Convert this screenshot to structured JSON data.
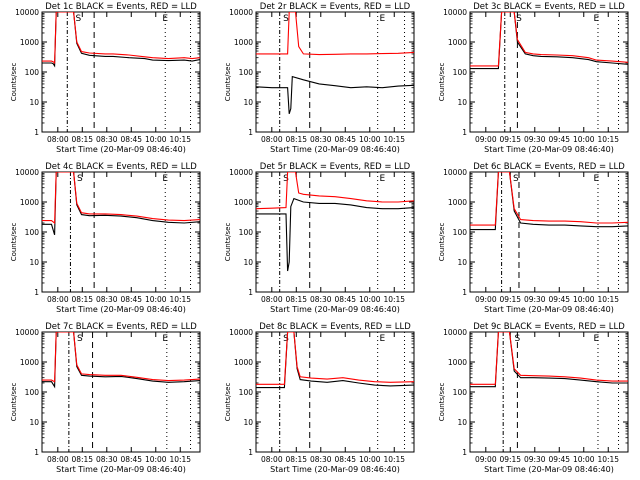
{
  "figure": {
    "type": "line",
    "xlabel": "Start Time (20-Mar-09 08:46:40)",
    "ylabel": "Counts/sec",
    "x_ticks": [
      "08:00",
      "08:15",
      "08:30",
      "08:45",
      "09:00",
      "09:15"
    ],
    "y_ticks": [
      "1",
      "10",
      "100",
      "1000",
      "10000"
    ],
    "y_log": true,
    "ylim": [
      1,
      10000
    ],
    "colors": {
      "events": "#000000",
      "lld": "#ff0000",
      "axes": "#000000"
    },
    "legend_words": [
      "BLACK = Events,",
      "RED = LLD"
    ]
  },
  "chart_data": [
    {
      "type": "line",
      "title": "Det 1c BLACK = Events, RED = LLD",
      "xlabel": "Start Time (20-Mar-09 08:46:40)",
      "ylabel": "Counts/sec",
      "x_ticks": [
        "08:00",
        "08:15",
        "08:30",
        "08:45",
        "10:00",
        "10:15"
      ],
      "markers": [
        "S",
        "E"
      ],
      "series": [
        {
          "name": "Events",
          "color": "#000000",
          "x": [
            0,
            6,
            7,
            8,
            9,
            12,
            16,
            20,
            22,
            25,
            30,
            40,
            45,
            55,
            65,
            70,
            80,
            90,
            95,
            100
          ],
          "values": [
            200,
            200,
            190,
            160,
            10000,
            10000,
            10000,
            10000,
            900,
            420,
            360,
            330,
            330,
            300,
            280,
            250,
            240,
            250,
            230,
            260
          ]
        },
        {
          "name": "LLD",
          "color": "#ff0000",
          "x": [
            0,
            6,
            7,
            8,
            9,
            12,
            16,
            20,
            22,
            25,
            30,
            40,
            45,
            55,
            65,
            70,
            80,
            90,
            95,
            100
          ],
          "values": [
            230,
            230,
            220,
            200,
            10000,
            10000,
            10000,
            10000,
            1000,
            480,
            430,
            400,
            400,
            370,
            320,
            300,
            280,
            300,
            280,
            300
          ]
        }
      ]
    },
    {
      "type": "line",
      "title": "Det 2r BLACK = Events, RED = LLD",
      "xlabel": "Start Time (20-Mar-09 08:46:40)",
      "ylabel": "Counts/sec",
      "x_ticks": [
        "08:00",
        "08:15",
        "08:30",
        "08:45",
        "10:00",
        "10:15"
      ],
      "markers": [
        "S",
        "E"
      ],
      "series": [
        {
          "name": "Events",
          "color": "#000000",
          "x": [
            0,
            10,
            20,
            21,
            22,
            23,
            30,
            40,
            50,
            60,
            70,
            80,
            90,
            100
          ],
          "values": [
            32,
            30,
            30,
            4,
            6,
            70,
            55,
            40,
            35,
            30,
            32,
            30,
            34,
            36
          ]
        },
        {
          "name": "LLD",
          "color": "#ff0000",
          "x": [
            0,
            10,
            20,
            21,
            22,
            23,
            25,
            27,
            30,
            40,
            50,
            60,
            70,
            80,
            90,
            100
          ],
          "values": [
            400,
            400,
            400,
            10000,
            10000,
            10000,
            10000,
            700,
            400,
            380,
            390,
            400,
            400,
            410,
            420,
            450
          ]
        }
      ]
    },
    {
      "type": "line",
      "title": "Det 3c BLACK = Events, RED = LLD",
      "xlabel": "Start Time (20-Mar-09 08:46:40)",
      "ylabel": "Counts/sec",
      "x_ticks": [
        "09:00",
        "09:15",
        "09:30",
        "09:45",
        "10:00",
        "10:15"
      ],
      "markers": [
        "S",
        "E"
      ],
      "series": [
        {
          "name": "Events",
          "color": "#000000",
          "x": [
            0,
            10,
            18,
            20,
            24,
            28,
            30,
            35,
            40,
            45,
            55,
            65,
            75,
            80,
            90,
            100
          ],
          "values": [
            130,
            130,
            130,
            10000,
            10000,
            10000,
            1000,
            400,
            350,
            330,
            320,
            300,
            260,
            220,
            200,
            180
          ]
        },
        {
          "name": "LLD",
          "color": "#ff0000",
          "x": [
            0,
            10,
            18,
            20,
            24,
            28,
            30,
            35,
            40,
            45,
            55,
            65,
            75,
            80,
            90,
            100
          ],
          "values": [
            160,
            160,
            160,
            10000,
            10000,
            10000,
            1200,
            450,
            400,
            380,
            370,
            350,
            300,
            250,
            230,
            210
          ]
        }
      ]
    },
    {
      "type": "line",
      "title": "Det 4c BLACK = Events, RED = LLD",
      "xlabel": "Start Time (20-Mar-09 08:46:40)",
      "ylabel": "Counts/sec",
      "x_ticks": [
        "08:00",
        "08:15",
        "08:30",
        "08:45",
        "10:00",
        "10:15"
      ],
      "markers": [
        "S",
        "E"
      ],
      "series": [
        {
          "name": "Events",
          "color": "#000000",
          "x": [
            0,
            6,
            8,
            9,
            12,
            16,
            20,
            22,
            25,
            30,
            40,
            50,
            60,
            70,
            80,
            90,
            100
          ],
          "values": [
            180,
            180,
            80,
            10000,
            10000,
            10000,
            10000,
            800,
            380,
            350,
            360,
            340,
            300,
            240,
            210,
            200,
            220
          ]
        },
        {
          "name": "LLD",
          "color": "#ff0000",
          "x": [
            0,
            6,
            8,
            9,
            12,
            16,
            20,
            22,
            25,
            30,
            40,
            50,
            60,
            70,
            80,
            90,
            100
          ],
          "values": [
            240,
            240,
            200,
            10000,
            10000,
            10000,
            10000,
            900,
            440,
            400,
            400,
            380,
            340,
            280,
            250,
            240,
            260
          ]
        }
      ]
    },
    {
      "type": "line",
      "title": "Det 5r BLACK = Events, RED = LLD",
      "xlabel": "Start Time (20-Mar-09 08:46:40)",
      "ylabel": "Counts/sec",
      "x_ticks": [
        "08:00",
        "08:15",
        "08:30",
        "08:45",
        "10:00",
        "10:15"
      ],
      "markers": [
        "S",
        "E"
      ],
      "series": [
        {
          "name": "Events",
          "color": "#000000",
          "x": [
            0,
            10,
            19,
            20,
            21,
            22,
            24,
            30,
            40,
            50,
            60,
            70,
            80,
            90,
            100
          ],
          "values": [
            400,
            400,
            400,
            5,
            10,
            700,
            1300,
            1000,
            900,
            900,
            800,
            650,
            600,
            600,
            650
          ]
        },
        {
          "name": "LLD",
          "color": "#ff0000",
          "x": [
            0,
            10,
            19,
            20,
            21,
            23,
            25,
            27,
            30,
            40,
            50,
            60,
            70,
            80,
            90,
            100
          ],
          "values": [
            600,
            620,
            650,
            10000,
            10000,
            10000,
            10000,
            2000,
            1800,
            1600,
            1500,
            1300,
            1100,
            1000,
            1000,
            1100
          ]
        }
      ]
    },
    {
      "type": "line",
      "title": "Det 6c BLACK = Events, RED = LLD",
      "xlabel": "Start Time (20-Mar-09 08:46:40)",
      "ylabel": "Counts/sec",
      "x_ticks": [
        "09:00",
        "09:15",
        "09:30",
        "09:45",
        "10:00",
        "10:15"
      ],
      "markers": [
        "S",
        "E"
      ],
      "series": [
        {
          "name": "Events",
          "color": "#000000",
          "x": [
            0,
            10,
            16,
            18,
            22,
            25,
            28,
            32,
            40,
            50,
            60,
            70,
            80,
            90,
            100
          ],
          "values": [
            120,
            120,
            120,
            10000,
            10000,
            10000,
            500,
            200,
            180,
            170,
            170,
            160,
            150,
            150,
            160
          ]
        },
        {
          "name": "LLD",
          "color": "#ff0000",
          "x": [
            0,
            10,
            16,
            18,
            22,
            25,
            28,
            32,
            40,
            50,
            60,
            70,
            80,
            90,
            100
          ],
          "values": [
            170,
            170,
            170,
            10000,
            10000,
            10000,
            600,
            260,
            240,
            230,
            230,
            220,
            200,
            200,
            210
          ]
        }
      ]
    },
    {
      "type": "line",
      "title": "Det 7c BLACK = Events, RED = LLD",
      "xlabel": "Start Time (20-Mar-09 08:46:40)",
      "ylabel": "Counts/sec",
      "x_ticks": [
        "08:00",
        "08:15",
        "08:30",
        "08:45",
        "10:00",
        "10:15"
      ],
      "markers": [
        "S",
        "E"
      ],
      "series": [
        {
          "name": "Events",
          "color": "#000000",
          "x": [
            0,
            6,
            8,
            9,
            12,
            16,
            20,
            22,
            25,
            30,
            40,
            50,
            60,
            70,
            80,
            90,
            100
          ],
          "values": [
            220,
            220,
            150,
            10000,
            10000,
            10000,
            10000,
            700,
            360,
            340,
            320,
            330,
            280,
            230,
            210,
            220,
            240
          ]
        },
        {
          "name": "LLD",
          "color": "#ff0000",
          "x": [
            0,
            6,
            8,
            9,
            12,
            16,
            20,
            22,
            25,
            30,
            40,
            50,
            60,
            70,
            80,
            90,
            100
          ],
          "values": [
            250,
            250,
            220,
            10000,
            10000,
            10000,
            10000,
            800,
            400,
            380,
            360,
            360,
            310,
            260,
            240,
            250,
            270
          ]
        }
      ]
    },
    {
      "type": "line",
      "title": "Det 8c BLACK = Events, RED = LLD",
      "xlabel": "Start Time (20-Mar-09 08:46:40)",
      "ylabel": "Counts/sec",
      "x_ticks": [
        "08:00",
        "08:15",
        "08:30",
        "08:45",
        "10:00",
        "10:15"
      ],
      "markers": [
        "S",
        "E"
      ],
      "series": [
        {
          "name": "Events",
          "color": "#000000",
          "x": [
            0,
            10,
            18,
            20,
            24,
            26,
            28,
            35,
            45,
            55,
            65,
            75,
            85,
            100
          ],
          "values": [
            140,
            140,
            140,
            10000,
            10000,
            600,
            260,
            230,
            210,
            240,
            200,
            170,
            160,
            170
          ]
        },
        {
          "name": "LLD",
          "color": "#ff0000",
          "x": [
            0,
            10,
            18,
            20,
            24,
            26,
            28,
            35,
            45,
            55,
            65,
            75,
            85,
            100
          ],
          "values": [
            180,
            180,
            180,
            10000,
            10000,
            700,
            320,
            290,
            270,
            300,
            250,
            220,
            210,
            220
          ]
        }
      ]
    },
    {
      "type": "line",
      "title": "Det 9c BLACK = Events, RED = LLD",
      "xlabel": "Start Time (20-Mar-09 08:46:40)",
      "ylabel": "Counts/sec",
      "x_ticks": [
        "09:00",
        "09:15",
        "09:30",
        "09:45",
        "10:00",
        "10:15"
      ],
      "markers": [
        "S",
        "E"
      ],
      "series": [
        {
          "name": "Events",
          "color": "#000000",
          "x": [
            0,
            10,
            16,
            18,
            22,
            25,
            28,
            32,
            40,
            50,
            60,
            70,
            80,
            90,
            100
          ],
          "values": [
            150,
            150,
            150,
            10000,
            10000,
            10000,
            500,
            300,
            300,
            290,
            280,
            250,
            220,
            200,
            200
          ]
        },
        {
          "name": "LLD",
          "color": "#ff0000",
          "x": [
            0,
            10,
            16,
            18,
            22,
            25,
            28,
            32,
            40,
            50,
            60,
            70,
            80,
            90,
            100
          ],
          "values": [
            180,
            180,
            180,
            10000,
            10000,
            10000,
            600,
            360,
            350,
            340,
            320,
            290,
            250,
            230,
            230
          ]
        }
      ]
    }
  ]
}
